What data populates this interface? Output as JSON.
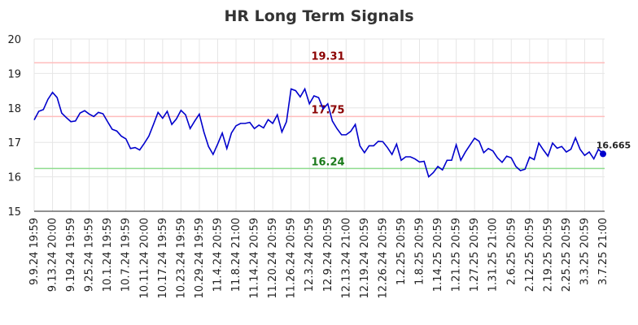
{
  "chart_data": {
    "type": "line",
    "title": "HR Long Term Signals",
    "categories": [
      "9.9.24 19:59",
      null,
      null,
      null,
      "9.13.24 20:00",
      null,
      null,
      null,
      "9.19.24 19:59",
      null,
      null,
      null,
      "9.25.24 19:59",
      null,
      null,
      null,
      "10.1.24 19:59",
      null,
      null,
      null,
      "10.7.24 19:59",
      null,
      null,
      null,
      "10.11.24 20:00",
      null,
      null,
      null,
      "10.17.24 19:59",
      null,
      null,
      null,
      "10.23.24 19:59",
      null,
      null,
      null,
      "10.29.24 19:59",
      null,
      null,
      null,
      "11.4.24 20:59",
      null,
      null,
      null,
      "11.8.24 21:00",
      null,
      null,
      null,
      "11.14.24 20:59",
      null,
      null,
      null,
      "11.20.24 20:59",
      null,
      null,
      null,
      "11.26.24 20:59",
      null,
      null,
      null,
      "12.3.24 20:59",
      null,
      null,
      null,
      "12.9.24 20:59",
      null,
      null,
      null,
      "12.13.24 21:00",
      null,
      null,
      null,
      "12.19.24 20:59",
      null,
      null,
      null,
      "12.26.24 20:59",
      null,
      null,
      null,
      "1.2.25 20:59",
      null,
      null,
      null,
      "1.8.25 20:59",
      null,
      null,
      null,
      "1.14.25 20:59",
      null,
      null,
      null,
      "1.21.25 20:59",
      null,
      null,
      null,
      "1.27.25 20:59",
      null,
      null,
      null,
      "1.31.25 21:00",
      null,
      null,
      null,
      "2.6.25 20:59",
      null,
      null,
      null,
      "2.12.25 20:59",
      null,
      null,
      null,
      "2.19.25 20:59",
      null,
      null,
      null,
      "2.25.25 20:59",
      null,
      null,
      null,
      "3.3.25 20:59",
      null,
      null,
      null,
      "3.7.25 21:00"
    ],
    "series": [
      {
        "color": "#0000cc",
        "values": [
          17.65,
          17.9,
          17.95,
          18.25,
          18.45,
          18.3,
          17.85,
          17.72,
          17.6,
          17.62,
          17.85,
          17.92,
          17.82,
          17.75,
          17.87,
          17.83,
          17.6,
          17.38,
          17.33,
          17.18,
          17.1,
          16.82,
          16.85,
          16.78,
          16.97,
          17.18,
          17.52,
          17.87,
          17.7,
          17.9,
          17.52,
          17.68,
          17.93,
          17.8,
          17.4,
          17.62,
          17.82,
          17.3,
          16.88,
          16.65,
          16.95,
          17.27,
          16.82,
          17.27,
          17.48,
          17.55,
          17.55,
          17.58,
          17.4,
          17.5,
          17.42,
          17.66,
          17.55,
          17.8,
          17.3,
          17.6,
          18.55,
          18.5,
          18.32,
          18.55,
          18.12,
          18.35,
          18.3,
          17.97,
          18.12,
          17.62,
          17.4,
          17.22,
          17.22,
          17.32,
          17.52,
          16.9,
          16.7,
          16.9,
          16.9,
          17.03,
          17.02,
          16.85,
          16.65,
          16.95,
          16.48,
          16.58,
          16.58,
          16.52,
          16.43,
          16.45,
          16.0,
          16.12,
          16.3,
          16.2,
          16.48,
          16.48,
          16.93,
          16.48,
          16.72,
          16.92,
          17.12,
          17.03,
          16.7,
          16.82,
          16.75,
          16.55,
          16.42,
          16.6,
          16.55,
          16.3,
          16.18,
          16.22,
          16.57,
          16.5,
          16.98,
          16.78,
          16.6,
          16.98,
          16.83,
          16.88,
          16.72,
          16.8,
          17.13,
          16.8,
          16.62,
          16.72,
          16.52,
          16.8,
          16.665
        ]
      }
    ],
    "hlines": [
      {
        "value": 19.31,
        "color": "#ffbdbd",
        "label_color": "#8b0000"
      },
      {
        "value": 17.75,
        "color": "#ffbdbd",
        "label_color": "#8b0000"
      },
      {
        "value": 16.24,
        "color": "#8fdc8f",
        "label_color": "#1a7a1a"
      }
    ],
    "ylim": [
      15,
      20
    ],
    "yticks": [
      15,
      16,
      17,
      18,
      19,
      20
    ],
    "grid": true
  }
}
